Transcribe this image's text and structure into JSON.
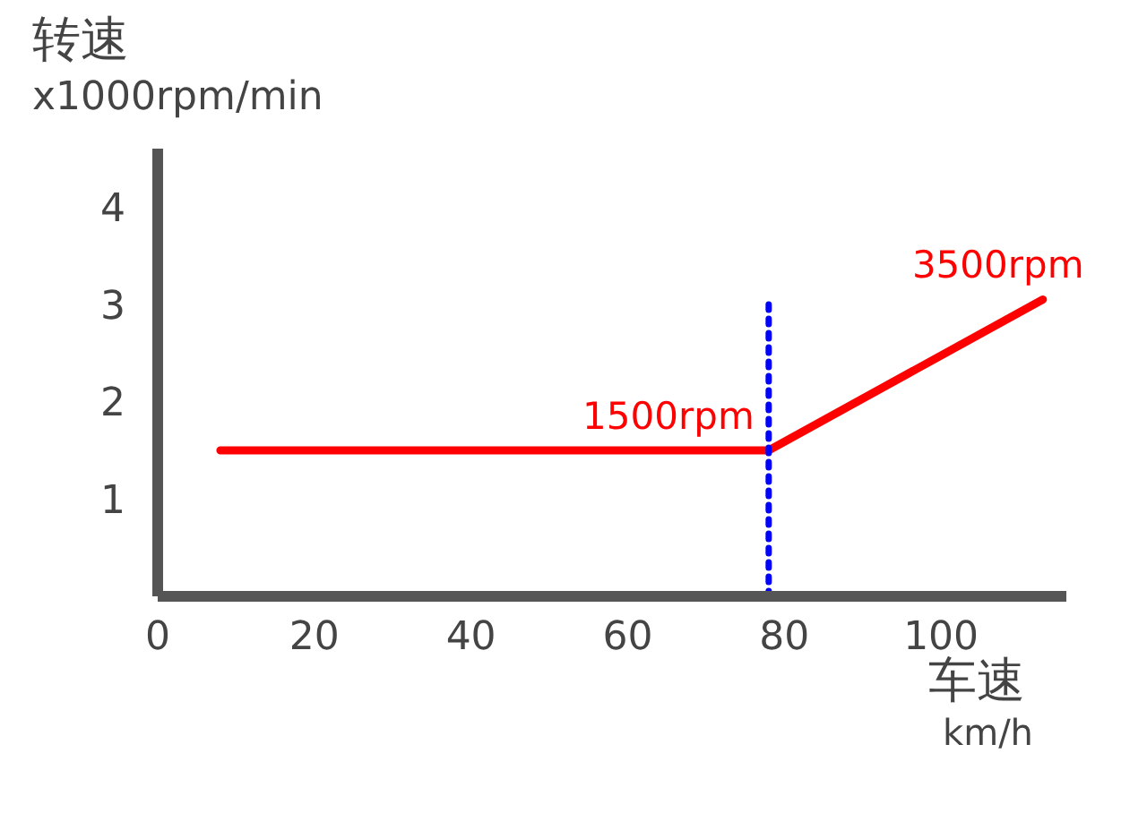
{
  "chart_data": {
    "type": "line",
    "xlabel": "车速\nkm/h",
    "ylabel": "转速\nx1000rpm/min",
    "xlim": [
      0,
      116
    ],
    "xticks": [
      0,
      20,
      40,
      60,
      80,
      100
    ],
    "ylim": [
      0,
      4.6
    ],
    "yticks": [
      1,
      2,
      3,
      4
    ],
    "grid": false,
    "legend": false,
    "marker": "none",
    "series": [
      {
        "color": "#ff0000",
        "x": [
          8,
          78,
          113
        ],
        "values": [
          1.5,
          1.5,
          3.05
        ],
        "line_style": "solid"
      },
      {
        "color": "#0000ff",
        "x": [
          78,
          78
        ],
        "values": [
          0,
          3
        ],
        "line_style": "dotted"
      }
    ],
    "annotations": [
      {
        "text": "1500rpm",
        "x": 78,
        "y": 1.5
      },
      {
        "text": "3500rpm",
        "x": 113,
        "y": 3.05
      }
    ]
  }
}
